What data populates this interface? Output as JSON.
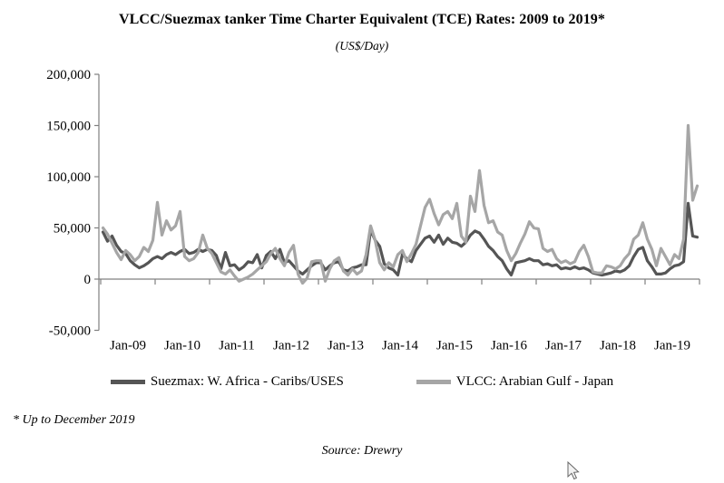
{
  "title": "VLCC/Suezmax tanker Time Charter Equivalent (TCE) Rates: 2009 to 2019*",
  "subtitle": "(US$/Day)",
  "footnote": "* Up to December 2019",
  "source": "Source: Drewry",
  "colors": {
    "suezmax": "#555555",
    "vlcc": "#a6a6a6",
    "axis": "#808080"
  },
  "chart_data": {
    "type": "line",
    "title": "VLCC/Suezmax tanker Time Charter Equivalent (TCE) Rates: 2009 to 2019*",
    "subtitle_units": "US$/Day",
    "x_unit": "monthly",
    "x_start": "Jan-09",
    "x_end": "Dec-19",
    "x_tick_labels": [
      "Jan-09",
      "Jan-10",
      "Jan-11",
      "Jan-12",
      "Jan-13",
      "Jan-14",
      "Jan-15",
      "Jan-16",
      "Jan-17",
      "Jan-18",
      "Jan-19"
    ],
    "y_tick_values": [
      200000,
      150000,
      100000,
      50000,
      0,
      -50000
    ],
    "y_tick_labels": [
      "200,000",
      "150,000",
      "100,000",
      "50,000",
      "0",
      "-50,000"
    ],
    "ylim": [
      -50000,
      200000
    ],
    "grid": false,
    "legend_position": "bottom",
    "series": [
      {
        "name": "Suezmax: W. Africa - Caribs/USES",
        "color": "#555555",
        "values": [
          46000,
          37000,
          42000,
          33000,
          27000,
          25000,
          18000,
          14000,
          11000,
          13000,
          16000,
          20000,
          22000,
          20000,
          24000,
          26000,
          24000,
          27000,
          29000,
          25000,
          26000,
          29000,
          27000,
          29000,
          28000,
          23000,
          10000,
          26000,
          13000,
          14000,
          9000,
          12000,
          17000,
          16000,
          24000,
          11000,
          23000,
          27000,
          20000,
          29000,
          16000,
          18000,
          13000,
          8000,
          5000,
          9000,
          13000,
          16000,
          16000,
          9000,
          13000,
          16000,
          17000,
          9000,
          8000,
          11000,
          12000,
          14000,
          14000,
          48000,
          38000,
          32000,
          15000,
          11000,
          9000,
          4000,
          24000,
          20000,
          17000,
          28000,
          34000,
          40000,
          42000,
          36000,
          43000,
          34000,
          40000,
          36000,
          35000,
          32000,
          36000,
          43000,
          47000,
          45000,
          39000,
          32000,
          28000,
          22000,
          18000,
          10000,
          4000,
          16000,
          17000,
          18000,
          20000,
          18000,
          18000,
          14000,
          15000,
          13000,
          14000,
          10000,
          11000,
          10000,
          12000,
          10000,
          11000,
          9000,
          6000,
          5000,
          4000,
          5000,
          6000,
          8000,
          7000,
          9000,
          13000,
          22000,
          29000,
          31000,
          18000,
          12000,
          5000,
          5000,
          6000,
          10000,
          13000,
          14000,
          17000,
          74000,
          42000,
          41000
        ]
      },
      {
        "name": "VLCC: Arabian Gulf - Japan",
        "color": "#a6a6a6",
        "values": [
          50000,
          44000,
          35000,
          26000,
          19000,
          28000,
          24000,
          18000,
          22000,
          31000,
          27000,
          38000,
          75000,
          43000,
          57000,
          48000,
          52000,
          66000,
          22000,
          18000,
          20000,
          26000,
          43000,
          30000,
          25000,
          16000,
          7000,
          5000,
          9000,
          3000,
          -2000,
          0,
          2000,
          5000,
          9000,
          13000,
          17000,
          25000,
          30000,
          20000,
          13000,
          26000,
          33000,
          5000,
          -4000,
          1000,
          17000,
          18000,
          18000,
          -2000,
          10000,
          18000,
          21000,
          8000,
          4000,
          10000,
          5000,
          8000,
          24000,
          52000,
          38000,
          16000,
          9000,
          16000,
          12000,
          24000,
          28000,
          17000,
          25000,
          34000,
          52000,
          70000,
          78000,
          64000,
          53000,
          63000,
          66000,
          59000,
          74000,
          42000,
          36000,
          81000,
          66000,
          106000,
          72000,
          55000,
          57000,
          46000,
          43000,
          28000,
          18000,
          25000,
          35000,
          44000,
          56000,
          50000,
          49000,
          30000,
          27000,
          29000,
          20000,
          16000,
          18000,
          15000,
          17000,
          27000,
          33000,
          22000,
          7000,
          6000,
          6000,
          13000,
          12000,
          10000,
          13000,
          20000,
          25000,
          39000,
          43000,
          55000,
          39000,
          29000,
          13000,
          30000,
          22000,
          14000,
          24000,
          20000,
          39000,
          150000,
          77000,
          91000
        ]
      }
    ]
  }
}
